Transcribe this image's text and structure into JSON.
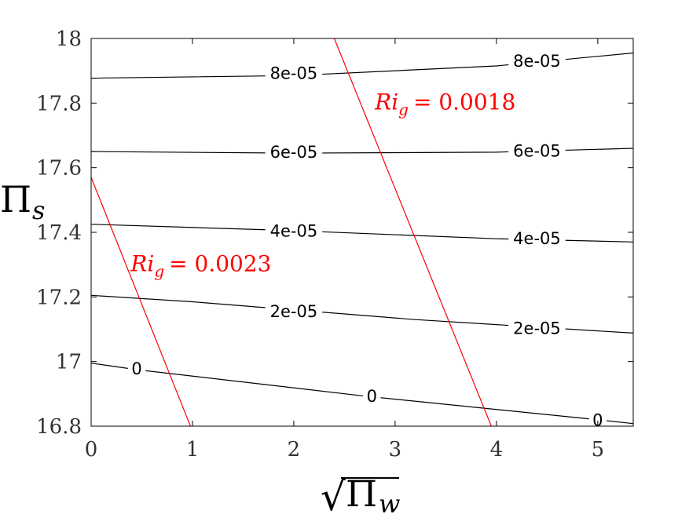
{
  "chart_data": {
    "type": "contour",
    "xlabel": "√Πw",
    "xlabel_parts": {
      "radical": "√",
      "symbol": "Π",
      "subscript": "w"
    },
    "ylabel_parts": {
      "symbol": "Π",
      "subscript": "s"
    },
    "xlim": [
      0,
      5.35
    ],
    "ylim": [
      16.8,
      18.0
    ],
    "x_ticks": [
      {
        "value": 0,
        "label": "0"
      },
      {
        "value": 1,
        "label": "1"
      },
      {
        "value": 2,
        "label": "2"
      },
      {
        "value": 3,
        "label": "3"
      },
      {
        "value": 4,
        "label": "4"
      },
      {
        "value": 5,
        "label": "5"
      }
    ],
    "y_ticks": [
      {
        "value": 16.8,
        "label": "16.8"
      },
      {
        "value": 17.0,
        "label": "17"
      },
      {
        "value": 17.2,
        "label": "17.2"
      },
      {
        "value": 17.4,
        "label": "17.4"
      },
      {
        "value": 17.6,
        "label": "17.6"
      },
      {
        "value": 17.8,
        "label": "17.8"
      },
      {
        "value": 18.0,
        "label": "18"
      }
    ],
    "contours": [
      {
        "level": "0",
        "points": [
          [
            0,
            16.995
          ],
          [
            0.45,
            16.975
          ],
          [
            2.7,
            16.893
          ],
          [
            4.9,
            16.823
          ],
          [
            5.35,
            16.808
          ]
        ],
        "labels": [
          {
            "x": 0.45,
            "y": 16.977
          },
          {
            "x": 2.77,
            "y": 16.892
          },
          {
            "x": 5.0,
            "y": 16.818
          }
        ]
      },
      {
        "level": "2e-05",
        "points": [
          [
            0,
            17.205
          ],
          [
            1.0,
            17.185
          ],
          [
            3.2,
            17.13
          ],
          [
            5.35,
            17.088
          ]
        ],
        "labels": [
          {
            "x": 2.0,
            "y": 17.155
          },
          {
            "x": 4.4,
            "y": 17.103
          }
        ]
      },
      {
        "level": "4e-05",
        "points": [
          [
            0,
            17.425
          ],
          [
            2.0,
            17.405
          ],
          [
            4.0,
            17.38
          ],
          [
            5.35,
            17.37
          ]
        ],
        "labels": [
          {
            "x": 2.0,
            "y": 17.404
          },
          {
            "x": 4.4,
            "y": 17.38
          }
        ]
      },
      {
        "level": "6e-05",
        "points": [
          [
            0,
            17.65
          ],
          [
            2.0,
            17.645
          ],
          [
            4.0,
            17.648
          ],
          [
            5.35,
            17.66
          ]
        ],
        "labels": [
          {
            "x": 2.0,
            "y": 17.648
          },
          {
            "x": 4.4,
            "y": 17.652
          }
        ]
      },
      {
        "level": "8e-05",
        "points": [
          [
            0,
            17.877
          ],
          [
            2.0,
            17.885
          ],
          [
            4.0,
            17.915
          ],
          [
            5.35,
            17.955
          ]
        ],
        "labels": [
          {
            "x": 2.0,
            "y": 17.892
          },
          {
            "x": 4.4,
            "y": 17.93
          }
        ]
      }
    ],
    "reference_lines": [
      {
        "label_var": "Ri",
        "label_sub": "g",
        "label_value": "= 0.0023",
        "points": [
          [
            0,
            17.57
          ],
          [
            0.98,
            16.8
          ]
        ],
        "label_at": {
          "x": 0.39,
          "y": 17.28
        }
      },
      {
        "label_var": "Ri",
        "label_sub": "g",
        "label_value": "= 0.0018",
        "points": [
          [
            2.4,
            18.0
          ],
          [
            3.95,
            16.8
          ]
        ],
        "label_at": {
          "x": 2.8,
          "y": 17.78
        }
      }
    ],
    "grid": false,
    "line_color": "#000000",
    "reference_color": "#ff0000"
  }
}
